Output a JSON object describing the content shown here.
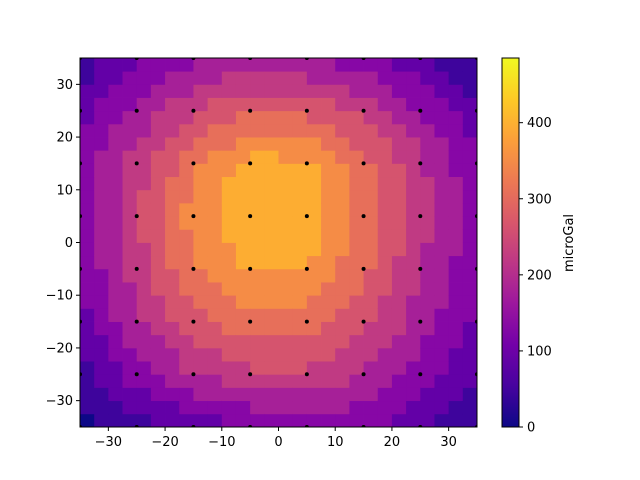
{
  "chart_data": {
    "type": "contour",
    "xlim": [
      -35,
      35
    ],
    "ylim": [
      -35,
      35
    ],
    "x_ticks": [
      -30,
      -20,
      -10,
      0,
      10,
      20,
      30
    ],
    "y_ticks": [
      -30,
      -20,
      -10,
      0,
      10,
      20,
      30
    ],
    "colormap": "plasma",
    "contour_levels": [
      0,
      50,
      100,
      150,
      200,
      250,
      300,
      350,
      400,
      450,
      500
    ],
    "level_colors": [
      "#0d0887",
      "#3e049c",
      "#6300a7",
      "#8707a6",
      "#a62098",
      "#c03a83",
      "#d5546e",
      "#e76f5a",
      "#f58c46",
      "#fdad32",
      "#fcd225"
    ],
    "colorbar": {
      "label": "microGal",
      "range": [
        0,
        485
      ],
      "ticks": [
        0,
        100,
        200,
        300,
        400
      ]
    },
    "grid_x": [
      -35,
      -25,
      -15,
      -5,
      5,
      15,
      25,
      35
    ],
    "grid_y": [
      -35,
      -25,
      -15,
      -5,
      5,
      15,
      25,
      35
    ],
    "z_values": [
      [
        20,
        80,
        110,
        150,
        170,
        165,
        110,
        45
      ],
      [
        80,
        175,
        250,
        290,
        290,
        245,
        180,
        105
      ],
      [
        125,
        240,
        330,
        380,
        375,
        310,
        225,
        145
      ],
      [
        155,
        275,
        395,
        455,
        445,
        365,
        255,
        165
      ],
      [
        170,
        290,
        425,
        500,
        490,
        390,
        270,
        170
      ],
      [
        165,
        275,
        385,
        470,
        460,
        370,
        260,
        160
      ],
      [
        130,
        215,
        300,
        350,
        335,
        285,
        200,
        115
      ],
      [
        65,
        135,
        185,
        215,
        200,
        170,
        115,
        30
      ]
    ],
    "sample_points": {
      "x": [
        -35,
        -25,
        -15,
        -5,
        5,
        15,
        25,
        35
      ],
      "y": [
        -35,
        -25,
        -15,
        -5,
        5,
        15,
        25,
        35
      ]
    }
  }
}
